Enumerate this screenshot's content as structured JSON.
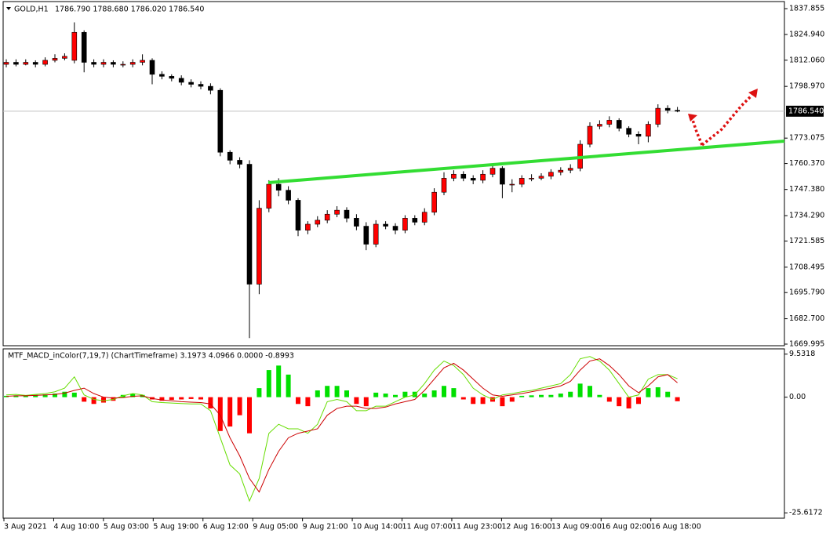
{
  "chart_data": [
    {
      "type": "candlestick",
      "symbol": "GOLD,H1",
      "header_values": "1786.790 1788.680 1786.020 1786.540",
      "open": [
        1810,
        1811,
        1810,
        1811,
        1810,
        1812,
        1813,
        1812,
        1826,
        1811,
        1810,
        1811,
        1810,
        1810,
        1811,
        1812,
        1805,
        1804,
        1803,
        1801,
        1800,
        1799,
        1797,
        1766,
        1762,
        1760,
        1700,
        1738,
        1750,
        1747,
        1742,
        1727,
        1730,
        1732,
        1735,
        1737,
        1733,
        1729,
        1720,
        1730,
        1729,
        1727,
        1733,
        1731,
        1736,
        1746,
        1753,
        1755,
        1753,
        1752,
        1755,
        1758,
        1750,
        1750,
        1753,
        1753,
        1754,
        1756,
        1757,
        1758,
        1770,
        1779,
        1780,
        1782,
        1778,
        1775,
        1774,
        1780,
        1788,
        1787
      ],
      "high": [
        1812.5,
        1812.5,
        1812.5,
        1812,
        1813.5,
        1815,
        1815.5,
        1831,
        1827,
        1812.5,
        1812.5,
        1812,
        1811.5,
        1812.5,
        1815,
        1813,
        1806.5,
        1805,
        1804.5,
        1802.5,
        1801.5,
        1800.5,
        1798,
        1767,
        1763.5,
        1762,
        1742,
        1752,
        1753,
        1749,
        1743,
        1731.5,
        1734,
        1737,
        1739,
        1738.5,
        1735,
        1731,
        1732,
        1731.5,
        1730.5,
        1734.5,
        1734.5,
        1738,
        1748,
        1756,
        1757,
        1756.5,
        1754.5,
        1757,
        1760,
        1759,
        1752.5,
        1754.5,
        1755,
        1755.5,
        1757.5,
        1758.5,
        1760,
        1772,
        1781,
        1782,
        1784,
        1783,
        1779,
        1776.5,
        1781.5,
        1790,
        1789.5,
        1788.68
      ],
      "low": [
        1808.5,
        1809,
        1809.5,
        1808.5,
        1809,
        1811,
        1812,
        1810.5,
        1806,
        1808.5,
        1808.5,
        1808.5,
        1808.5,
        1808.5,
        1809.5,
        1800,
        1802.5,
        1801.5,
        1799.5,
        1798.5,
        1797.5,
        1795,
        1764,
        1760,
        1758,
        1673,
        1695,
        1736,
        1744,
        1740,
        1724,
        1725,
        1728.5,
        1730.5,
        1733.5,
        1731,
        1727,
        1717,
        1718.5,
        1727.5,
        1725,
        1725.5,
        1729.5,
        1729.5,
        1734.5,
        1744.5,
        1751.5,
        1751.5,
        1750,
        1750.5,
        1753.5,
        1743,
        1746,
        1748.5,
        1751.5,
        1752,
        1752.5,
        1754.5,
        1755.5,
        1756.5,
        1768.5,
        1777.5,
        1778.5,
        1776.5,
        1773.5,
        1770,
        1771,
        1778.5,
        1785.5,
        1786.02
      ],
      "close": [
        1811,
        1810,
        1811,
        1810,
        1812,
        1813,
        1814,
        1826,
        1811,
        1810,
        1811,
        1810,
        1810,
        1811,
        1812,
        1805,
        1804,
        1803,
        1801,
        1800,
        1799,
        1797,
        1766,
        1762,
        1760,
        1700,
        1738,
        1750,
        1747,
        1742,
        1727,
        1730,
        1732,
        1735,
        1737,
        1733,
        1729,
        1720,
        1730,
        1729,
        1727,
        1733,
        1731,
        1736,
        1746,
        1753,
        1755,
        1753,
        1752,
        1755,
        1758,
        1750,
        1750,
        1753,
        1753,
        1754,
        1756,
        1757,
        1758,
        1770,
        1779,
        1780,
        1782,
        1778,
        1775,
        1774,
        1780,
        1788,
        1787,
        1786.54
      ],
      "up_color": "#ff0000",
      "down_color": "#000000",
      "ylim": [
        1669.2,
        1841.4
      ],
      "yticks": [
        {
          "value": 1837.855,
          "label": "1837.855"
        },
        {
          "value": 1824.94,
          "label": "1824.940"
        },
        {
          "value": 1812.06,
          "label": "1812.060"
        },
        {
          "value": 1798.97,
          "label": "1798.970"
        },
        {
          "value": 1773.075,
          "label": "1773.075"
        },
        {
          "value": 1760.37,
          "label": "1760.370"
        },
        {
          "value": 1747.38,
          "label": "1747.380"
        },
        {
          "value": 1734.29,
          "label": "1734.290"
        },
        {
          "value": 1721.585,
          "label": "1721.585"
        },
        {
          "value": 1708.495,
          "label": "1708.495"
        },
        {
          "value": 1695.79,
          "label": "1695.790"
        },
        {
          "value": 1682.7,
          "label": "1682.700"
        },
        {
          "value": 1669.995,
          "label": "1669.995"
        }
      ],
      "last_price": {
        "value": 1786.54,
        "label": "1786.540"
      },
      "x_labels": [
        "3 Aug 2021",
        "4 Aug 10:00",
        "5 Aug 03:00",
        "5 Aug 19:00",
        "6 Aug 12:00",
        "9 Aug 05:00",
        "9 Aug 21:00",
        "10 Aug 14:00",
        "11 Aug 07:00",
        "11 Aug 23:00",
        "12 Aug 16:00",
        "13 Aug 09:00",
        "16 Aug 02:00",
        "16 Aug 18:00"
      ]
    },
    {
      "type": "macd",
      "title": "MTF_MACD_inColor(7,19,7) (ChartTimeframe) 3.1973 4.0966 0.0000 -0.8993",
      "histogram": [
        0.3,
        0.4,
        0.3,
        0.5,
        0.6,
        0.8,
        1.2,
        1.0,
        -1.0,
        -1.5,
        -1.2,
        -0.8,
        0.5,
        0.8,
        0.5,
        -0.5,
        -0.8,
        -0.6,
        -0.5,
        -0.4,
        -0.5,
        -2.5,
        -7.5,
        -6.5,
        -4,
        -8,
        2,
        6,
        7,
        5,
        -1.5,
        -2,
        1.5,
        2.5,
        2.5,
        1.5,
        -1.5,
        -2,
        1,
        0.8,
        0.5,
        1.2,
        1.2,
        0.8,
        1.5,
        2.5,
        2,
        -0.5,
        -1.5,
        -1.5,
        -1.0,
        -2,
        -1,
        0.3,
        0.4,
        0.5,
        0.5,
        0.8,
        1.2,
        3,
        2.5,
        0.5,
        -1.0,
        -2,
        -2.5,
        -1.5,
        2,
        2.2,
        1.2,
        -0.8993
      ],
      "positive_color": "#00e000",
      "negative_color": "#ff0000",
      "series": [
        {
          "color": "#66dd00",
          "values": [
            0.5,
            0.6,
            0.4,
            0.6,
            0.8,
            1.2,
            2,
            4.5,
            0.5,
            -0.5,
            -0.8,
            -0.5,
            0.3,
            0.8,
            0.5,
            -1,
            -1.2,
            -1.3,
            -1.4,
            -1.5,
            -1.5,
            -3,
            -9,
            -15,
            -17,
            -23,
            -18,
            -8,
            -6,
            -7,
            -7,
            -8,
            -6,
            -1,
            -0.5,
            -1,
            -3,
            -3,
            -2,
            -2,
            -1,
            0,
            0.5,
            3,
            6,
            8,
            7,
            5,
            2,
            0.5,
            -0.5,
            0.5,
            0.8,
            1.2,
            1.5,
            2,
            2.5,
            3,
            5,
            8.5,
            9,
            8,
            6,
            3,
            0,
            0.5,
            4,
            5,
            5,
            4.0966
          ]
        },
        {
          "color": "#cc0000",
          "values": [
            0.2,
            0.3,
            0.3,
            0.4,
            0.5,
            0.6,
            0.9,
            1.5,
            2,
            0.8,
            0,
            -0.2,
            -0.1,
            0.2,
            0.3,
            -0.3,
            -0.6,
            -0.8,
            -1,
            -1.1,
            -1.2,
            -1.5,
            -4,
            -9,
            -13,
            -18,
            -21,
            -16,
            -12,
            -9,
            -8,
            -7.5,
            -7,
            -4,
            -2.5,
            -2,
            -2,
            -2.5,
            -2.5,
            -2.2,
            -1.5,
            -1,
            -0.5,
            1.5,
            4,
            6.5,
            7.5,
            6,
            4,
            2,
            0.5,
            0.2,
            0.5,
            0.8,
            1.2,
            1.6,
            2,
            2.5,
            3.5,
            6,
            8,
            8.5,
            7,
            5,
            2.5,
            1,
            2.5,
            4.5,
            5,
            3.1973
          ]
        }
      ],
      "ylim": [
        -26.8,
        10.7
      ],
      "yticks": [
        {
          "value": 9.5318,
          "label": "9.5318"
        },
        {
          "value": 0,
          "label": "0.00"
        },
        {
          "value": -25.6172,
          "label": "-25.6172"
        }
      ]
    }
  ]
}
